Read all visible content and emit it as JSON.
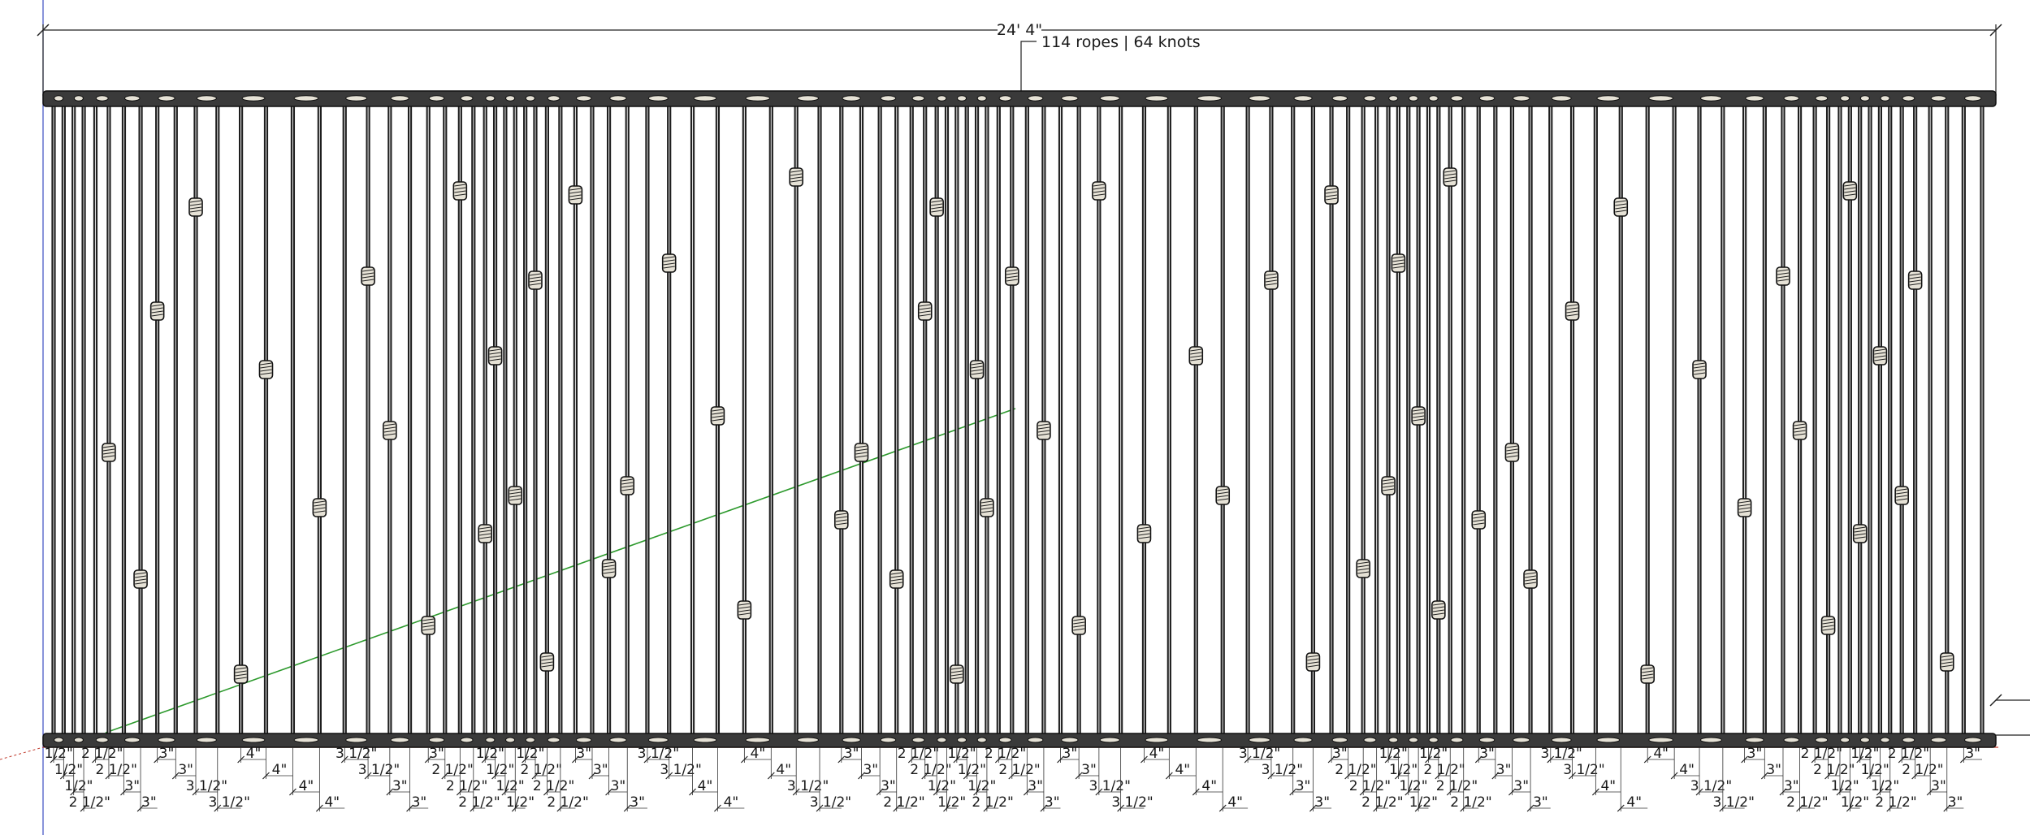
{
  "annotation": {
    "overall_width": "24' 4\"",
    "summary": "114 ropes | 64 knots"
  },
  "counts": {
    "ropes": 114,
    "knots": 64
  },
  "spacing_labels": [
    "1/2\"",
    "2 1/2\"",
    "3\"",
    "3 1/2\"",
    "4\""
  ],
  "colors": {
    "rope": "#1e1e1e",
    "rope_core": "#dcdcdc",
    "bar": "#3a3a3a",
    "knot": "#e6e2d6",
    "axis_red": "#c0392b",
    "axis_blue": "#3b4cc0",
    "guide_green": "#2e9a2e",
    "dimension": "#222222"
  }
}
